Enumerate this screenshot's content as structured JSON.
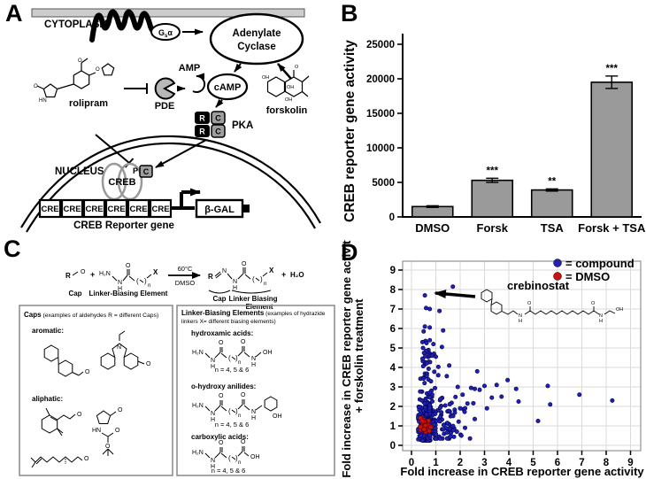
{
  "figure": {
    "panel_a": "A",
    "panel_b": "B",
    "panel_c": "C",
    "panel_d": "D"
  },
  "atoms": {
    "r": "R",
    "o": "O",
    "x": "X",
    "n": "N",
    "h": "H",
    "h2n": "H₂N",
    "oh": "OH",
    "hn": "HN",
    "nsub": "n",
    "plus": "+",
    "h2o": "H₂O"
  },
  "panelA": {
    "cytoplasm": "CYTOPLASM",
    "gsa_g": "G",
    "gsa_s": "s",
    "gsa_a": "α",
    "adenylate": "Adenylate",
    "cyclase": "Cyclase",
    "amp": "AMP",
    "camp": "cAMP",
    "pde": "PDE",
    "rolipram": "rolipram",
    "forskolin": "forskolin",
    "r_sub": "R",
    "c_sub": "C",
    "pka": "PKA",
    "p_label": "P",
    "nucleus": "NUCLEUS",
    "creb": "CREB",
    "cre": "CRE",
    "bgal": "β-GAL",
    "caption": "CREB Reporter gene"
  },
  "panelC": {
    "caps_title_bold": "Caps",
    "caps_title_rest": " (examples of aldehydes R = different Caps)",
    "lbe_title_bold": "Linker-Biasing Elements",
    "lbe_title_rest": " (examples of hydrazide",
    "lbe_title_line2": "linkers X= different biasing elements)",
    "aromatic": "aromatic:",
    "aliphatic": "aliphatic:",
    "hydroxamic": "hydroxamic acids:",
    "anilides": "o-hydroxy anilides:",
    "carboxylic": "carboxylic acids:",
    "n_range": "n = 4, 5 & 6",
    "temp": "60°C",
    "solvent": "DMSO",
    "cap": "Cap",
    "lbe": "Linker-Biasing Element",
    "cap2": "Cap",
    "linker_biasing": "Linker Biasing",
    "element": "Element"
  },
  "chart_data": [
    {
      "panel": "B",
      "type": "bar",
      "categories": [
        "DMSO",
        "Forsk",
        "TSA",
        "Forsk + TSA"
      ],
      "values": [
        1500,
        5300,
        3900,
        19500
      ],
      "errors": [
        120,
        300,
        160,
        900
      ],
      "significance": [
        "",
        "***",
        "**",
        "***"
      ],
      "ylabel": "CREB reporter gene activity",
      "ylim": [
        0,
        25000
      ],
      "yticks": [
        0,
        5000,
        10000,
        15000,
        20000,
        25000
      ],
      "bar_color": "#9a9a9a",
      "grid": false
    },
    {
      "panel": "D",
      "type": "scatter",
      "xlabel": "Fold increase in CREB reporter gene activity",
      "ylabel_line1": "Fold increase in CREB reporter gene activity",
      "ylabel_line2": "+ forskolin treatment",
      "xlim": [
        0,
        9
      ],
      "ylim": [
        0,
        9
      ],
      "xticks": [
        0,
        1,
        2,
        3,
        4,
        5,
        6,
        7,
        8,
        9
      ],
      "yticks": [
        0,
        1,
        2,
        3,
        4,
        5,
        6,
        7,
        8,
        9
      ],
      "grid": true,
      "legend": [
        {
          "label": "= compound",
          "color": "#2121b0"
        },
        {
          "label": "= DMSO",
          "color": "#cc1111"
        }
      ],
      "annotation": {
        "label": "crebinostat",
        "point": [
          0.6,
          7.7
        ]
      },
      "series": [
        {
          "name": "compound",
          "color": "#2121b0",
          "edge": "#00004d",
          "r": 2.2,
          "clusters": [
            {
              "n": 290,
              "x": {
                "dist": "normal",
                "mean": 0.6,
                "sd": 0.16,
                "min": 0.28,
                "max": 1.2
              },
              "y": {
                "dist": "normal",
                "mean": 1.15,
                "sd": 0.55,
                "min": 0.25,
                "max": 2.9
              }
            },
            {
              "n": 85,
              "x": {
                "dist": "normal",
                "mean": 1.35,
                "sd": 0.5,
                "min": 0.75,
                "max": 2.9
              },
              "y": {
                "dist": "normal",
                "mean": 1.35,
                "sd": 0.6,
                "min": 0.35,
                "max": 2.9
              }
            },
            {
              "n": 42,
              "x": {
                "dist": "normal",
                "mean": 0.65,
                "sd": 0.18,
                "min": 0.35,
                "max": 1.15
              },
              "y": {
                "dist": "uniform",
                "min": 2.6,
                "max": 5.4
              }
            }
          ],
          "outliers": [
            [
              1.7,
              8.15
            ],
            [
              0.55,
              7.7
            ],
            [
              0.6,
              7.05
            ],
            [
              0.75,
              7.0
            ],
            [
              1.15,
              6.9
            ],
            [
              0.55,
              6.1
            ],
            [
              0.75,
              6.05
            ],
            [
              0.5,
              5.85
            ],
            [
              1.3,
              5.9
            ],
            [
              0.45,
              5.3
            ],
            [
              0.62,
              5.25
            ],
            [
              0.9,
              5.2
            ],
            [
              1.25,
              5.05
            ],
            [
              0.85,
              4.6
            ],
            [
              1.0,
              4.55
            ],
            [
              1.55,
              4.1
            ],
            [
              2.7,
              3.8
            ],
            [
              2.45,
              2.95
            ],
            [
              2.6,
              2.9
            ],
            [
              2.8,
              2.85
            ],
            [
              3.0,
              3.05
            ],
            [
              3.3,
              2.45
            ],
            [
              3.5,
              3.1
            ],
            [
              3.7,
              2.5
            ],
            [
              3.95,
              3.35
            ],
            [
              4.3,
              2.9
            ],
            [
              4.4,
              2.25
            ],
            [
              5.2,
              1.25
            ],
            [
              5.6,
              3.05
            ],
            [
              5.7,
              2.1
            ],
            [
              6.9,
              2.6
            ],
            [
              8.25,
              2.3
            ],
            [
              2.3,
              2.15
            ],
            [
              2.1,
              2.6
            ],
            [
              1.9,
              3.0
            ],
            [
              2.0,
              1.9
            ],
            [
              2.2,
              0.9
            ],
            [
              2.6,
              1.35
            ],
            [
              3.1,
              1.9
            ],
            [
              1.6,
              0.45
            ],
            [
              2.05,
              0.5
            ],
            [
              1.45,
              3.55
            ],
            [
              1.1,
              3.6
            ]
          ]
        },
        {
          "name": "DMSO",
          "color": "#cc1111",
          "edge": "#550000",
          "r": 2.5,
          "clusters": [
            {
              "n": 26,
              "x": {
                "dist": "normal",
                "mean": 0.55,
                "sd": 0.1,
                "min": 0.33,
                "max": 0.8
              },
              "y": {
                "dist": "normal",
                "mean": 1.1,
                "sd": 0.22,
                "min": 0.65,
                "max": 1.55
              }
            }
          ]
        }
      ]
    }
  ]
}
